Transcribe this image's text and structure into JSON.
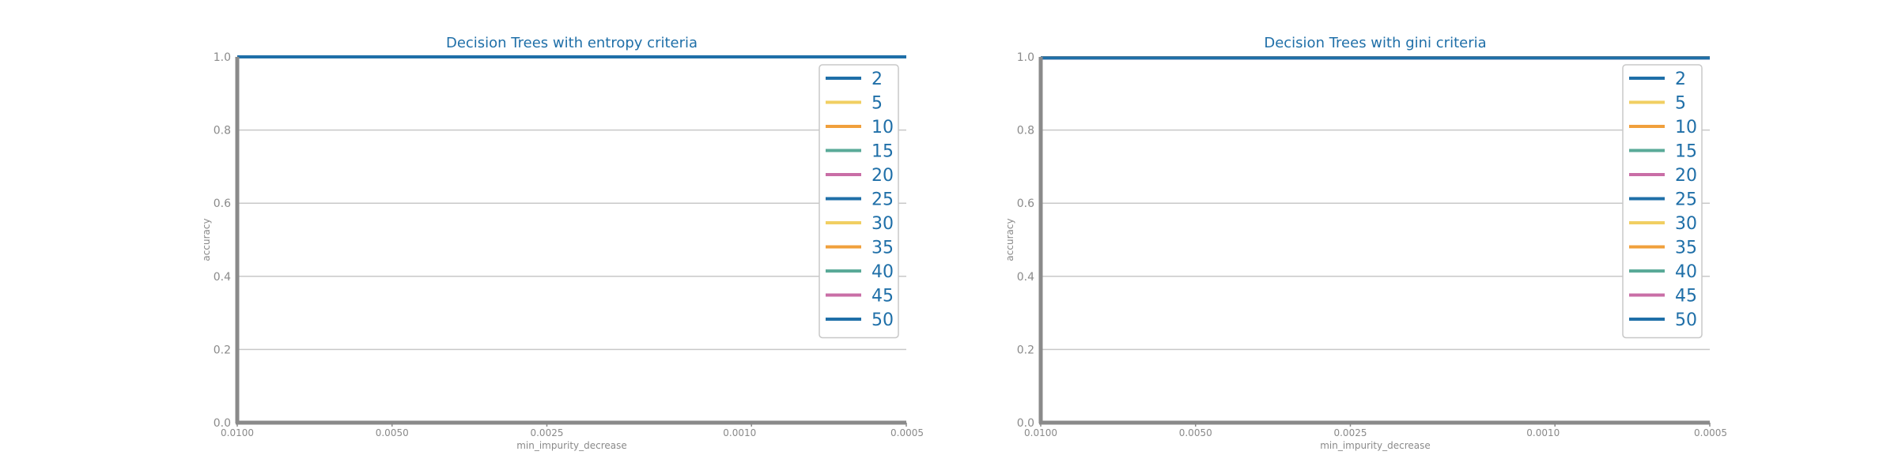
{
  "colors": {
    "text": "#1f6fa8",
    "tick": "#8a8a8a",
    "axis": "#8a8a8a",
    "grid": "#c8c8c8",
    "legend_border": "#c8c8c8",
    "palette": [
      "#1f6fa8",
      "#f1cf62",
      "#f0a03c",
      "#5aaa98",
      "#c96ea6",
      "#e39ed0"
    ]
  },
  "chart_data": [
    {
      "type": "line",
      "title": "Decision Trees with entropy criteria",
      "xlabel": "min_impurity_decrease",
      "ylabel": "accuracy",
      "x": [
        0.01,
        0.005,
        0.0025,
        0.001,
        0.0005
      ],
      "x_tick_labels": [
        "0.0100",
        "0.0050",
        "0.0025",
        "0.0010",
        "0.0005"
      ],
      "y_tick_labels": [
        "0.0",
        "0.2",
        "0.4",
        "0.6",
        "0.8",
        "1.0"
      ],
      "ylim": [
        0,
        1
      ],
      "x_axis_reversed": true,
      "grid": "horizontal",
      "legend": "top-right",
      "series": [
        {
          "name": "2",
          "values": [
            1,
            1,
            1,
            1,
            1
          ]
        },
        {
          "name": "5",
          "values": [
            1,
            1,
            1,
            1,
            1
          ]
        },
        {
          "name": "10",
          "values": [
            1,
            1,
            1,
            1,
            1
          ]
        },
        {
          "name": "15",
          "values": [
            1,
            1,
            1,
            1,
            1
          ]
        },
        {
          "name": "20",
          "values": [
            1,
            1,
            1,
            1,
            1
          ]
        },
        {
          "name": "25",
          "values": [
            1,
            1,
            1,
            1,
            1
          ]
        },
        {
          "name": "30",
          "values": [
            1,
            1,
            1,
            1,
            1
          ]
        },
        {
          "name": "35",
          "values": [
            1,
            1,
            1,
            1,
            1
          ]
        },
        {
          "name": "40",
          "values": [
            1,
            1,
            1,
            1,
            1
          ]
        },
        {
          "name": "45",
          "values": [
            1,
            1,
            1,
            1,
            1
          ]
        },
        {
          "name": "50",
          "values": [
            1,
            1,
            1,
            1,
            1
          ]
        }
      ]
    },
    {
      "type": "line",
      "title": "Decision Trees with gini criteria",
      "xlabel": "min_impurity_decrease",
      "ylabel": "accuracy",
      "x": [
        0.01,
        0.005,
        0.0025,
        0.001,
        0.0005
      ],
      "x_tick_labels": [
        "0.0100",
        "0.0050",
        "0.0025",
        "0.0010",
        "0.0005"
      ],
      "y_tick_labels": [
        "0.0",
        "0.2",
        "0.4",
        "0.6",
        "0.8",
        "1.0"
      ],
      "ylim": [
        0,
        1
      ],
      "x_axis_reversed": true,
      "grid": "horizontal",
      "legend": "top-right",
      "series": [
        {
          "name": "2",
          "values": [
            0.997,
            0.997,
            0.997,
            0.997,
            0.997
          ]
        },
        {
          "name": "5",
          "values": [
            0.997,
            0.997,
            0.997,
            0.997,
            0.997
          ]
        },
        {
          "name": "10",
          "values": [
            0.997,
            0.997,
            0.997,
            0.997,
            0.997
          ]
        },
        {
          "name": "15",
          "values": [
            0.997,
            0.997,
            0.997,
            0.997,
            0.997
          ]
        },
        {
          "name": "20",
          "values": [
            0.997,
            0.997,
            0.997,
            0.997,
            0.997
          ]
        },
        {
          "name": "25",
          "values": [
            0.997,
            0.997,
            0.997,
            0.997,
            0.997
          ]
        },
        {
          "name": "30",
          "values": [
            0.997,
            0.997,
            0.997,
            0.997,
            0.997
          ]
        },
        {
          "name": "35",
          "values": [
            0.997,
            0.997,
            0.997,
            0.997,
            0.997
          ]
        },
        {
          "name": "40",
          "values": [
            0.997,
            0.997,
            0.997,
            0.997,
            0.997
          ]
        },
        {
          "name": "45",
          "values": [
            0.997,
            0.997,
            0.997,
            0.997,
            0.997
          ]
        },
        {
          "name": "50",
          "values": [
            0.997,
            0.997,
            0.997,
            0.997,
            0.997
          ]
        }
      ]
    }
  ]
}
